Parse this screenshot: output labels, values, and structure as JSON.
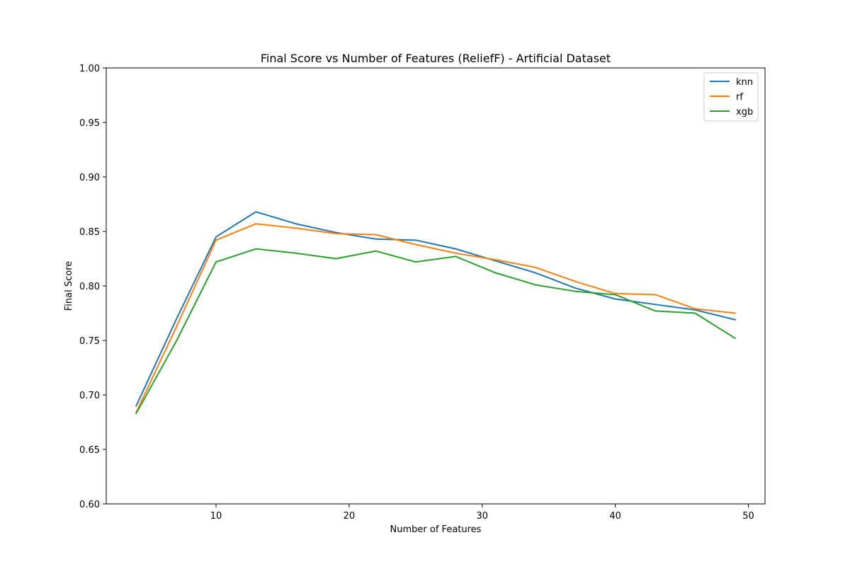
{
  "chart_data": {
    "type": "line",
    "title": "Final Score vs Number of Features (ReliefF) - Artificial Dataset",
    "xlabel": "Number of Features",
    "ylabel": "Final Score",
    "xlim": [
      1.75,
      51.25
    ],
    "ylim": [
      0.6,
      1.0
    ],
    "xticks": [
      10,
      20,
      30,
      40,
      50
    ],
    "yticks": [
      0.6,
      0.65,
      0.7,
      0.75,
      0.8,
      0.85,
      0.9,
      0.95,
      1.0
    ],
    "xtick_labels": [
      "10",
      "20",
      "30",
      "40",
      "50"
    ],
    "ytick_labels": [
      "0.60",
      "0.65",
      "0.70",
      "0.75",
      "0.80",
      "0.85",
      "0.90",
      "0.95",
      "1.00"
    ],
    "grid": false,
    "legend_position": "top-right",
    "x": [
      4,
      7,
      10,
      13,
      16,
      19,
      22,
      25,
      28,
      31,
      34,
      37,
      40,
      43,
      46,
      49
    ],
    "series": [
      {
        "name": "knn",
        "color": "#1f77b4",
        "values": [
          0.69,
          0.769,
          0.845,
          0.868,
          0.857,
          0.849,
          0.843,
          0.842,
          0.834,
          0.823,
          0.812,
          0.798,
          0.788,
          0.783,
          0.778,
          0.769
        ]
      },
      {
        "name": "rf",
        "color": "#ff7f0e",
        "values": [
          0.684,
          0.762,
          0.842,
          0.857,
          0.853,
          0.848,
          0.847,
          0.838,
          0.83,
          0.824,
          0.817,
          0.804,
          0.793,
          0.792,
          0.779,
          0.775
        ]
      },
      {
        "name": "xgb",
        "color": "#2ca02c",
        "values": [
          0.683,
          0.749,
          0.822,
          0.834,
          0.83,
          0.825,
          0.832,
          0.822,
          0.827,
          0.812,
          0.801,
          0.795,
          0.792,
          0.777,
          0.775,
          0.752
        ]
      }
    ]
  }
}
